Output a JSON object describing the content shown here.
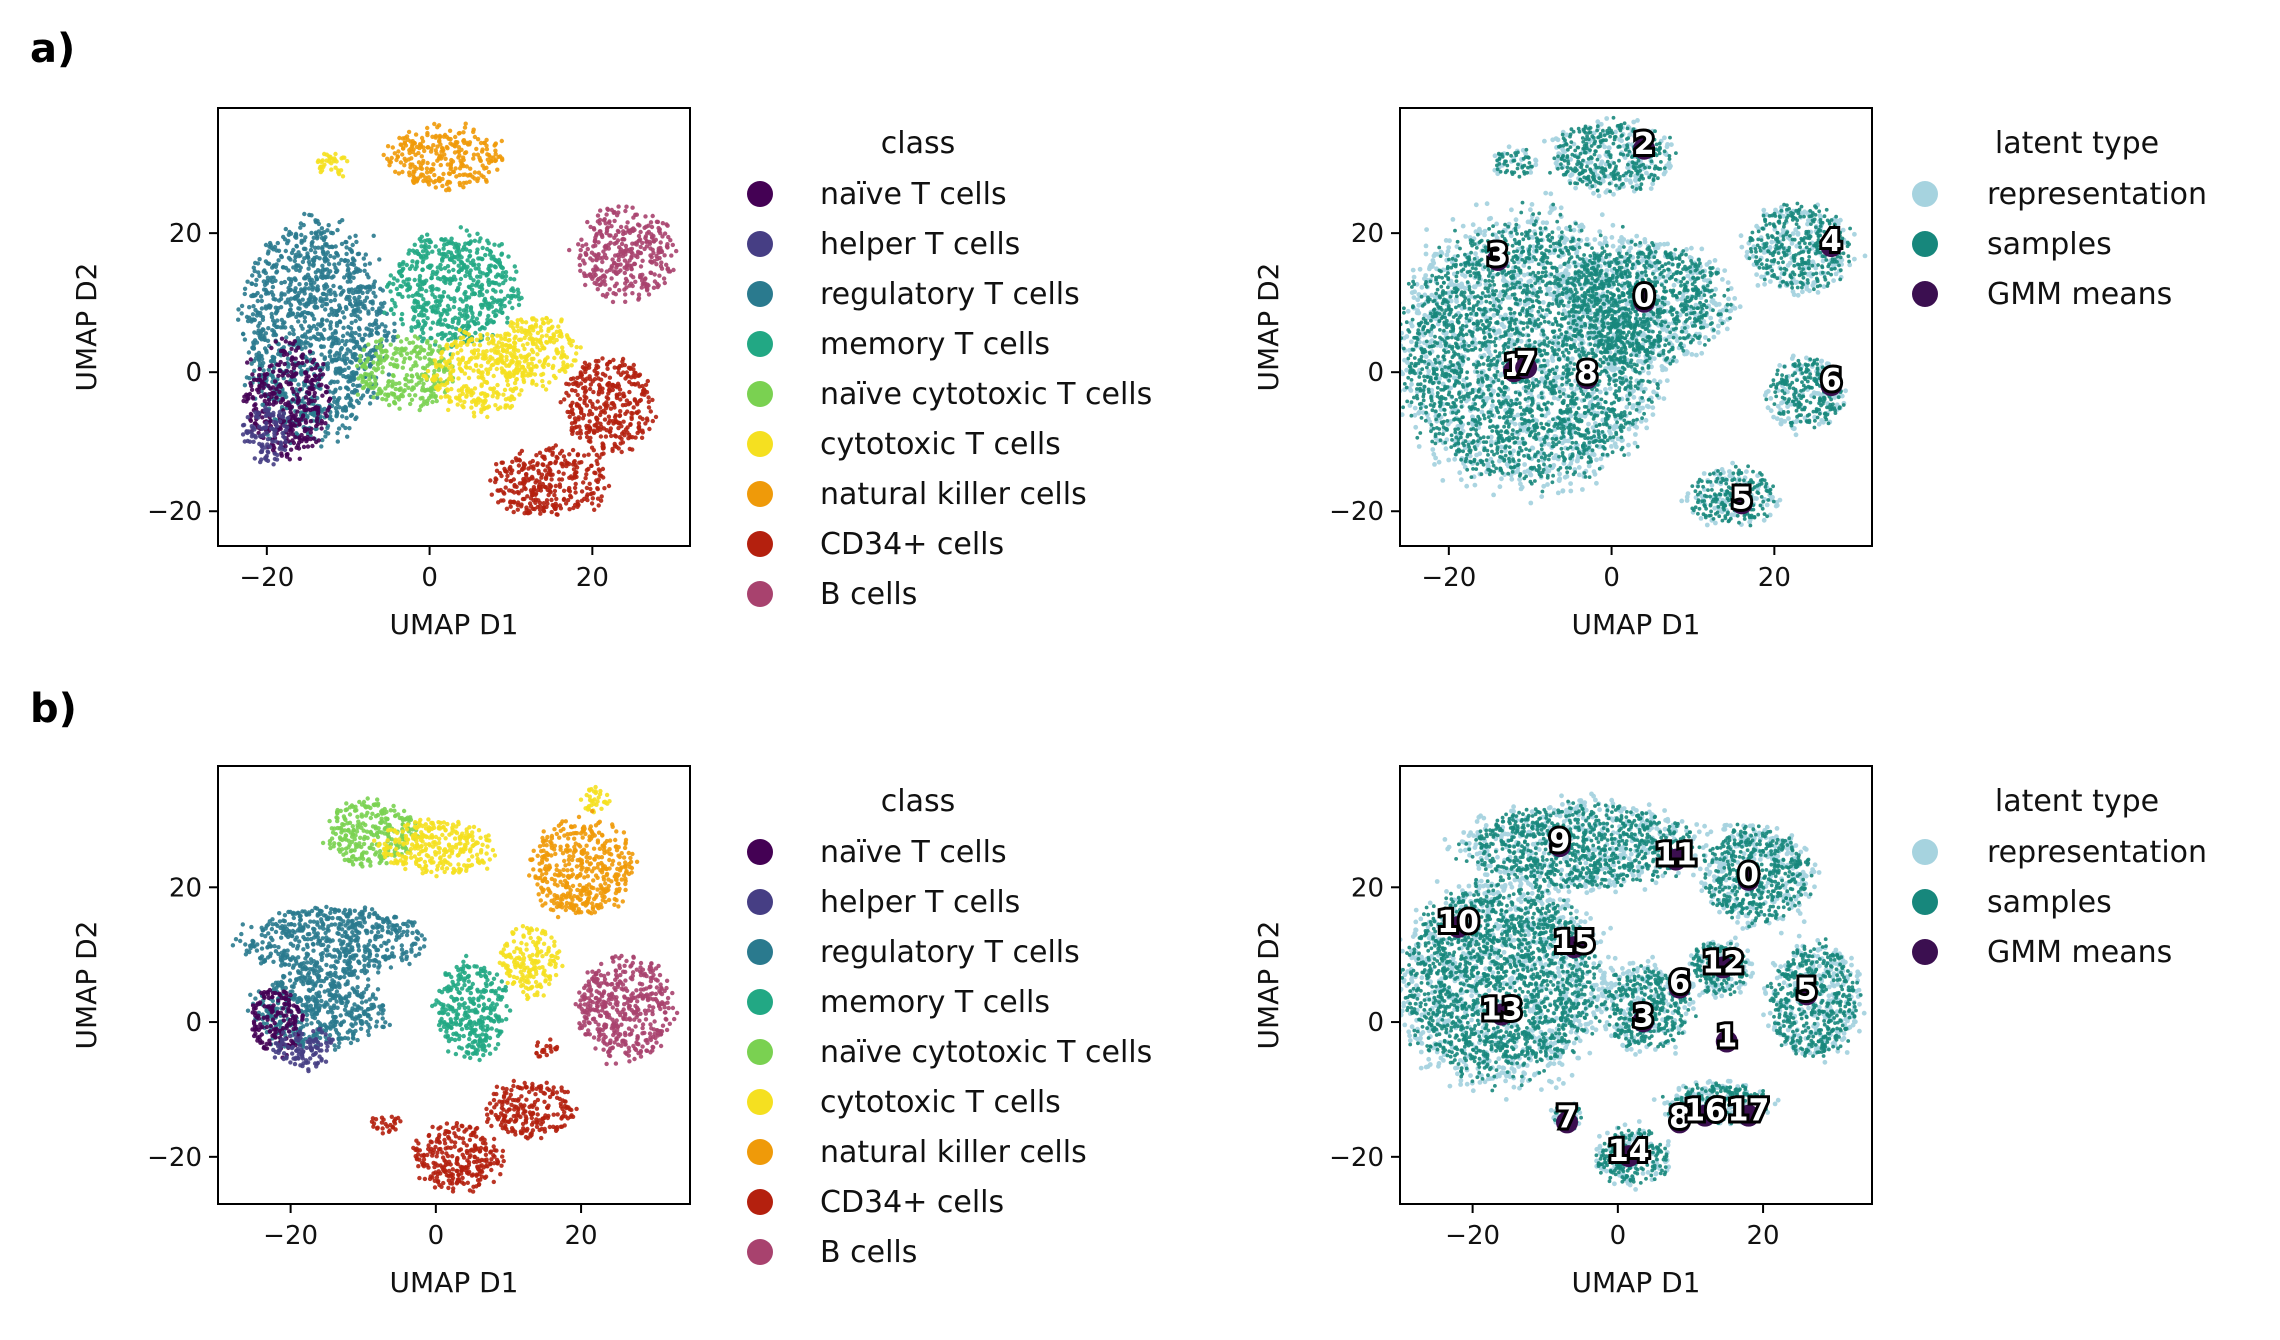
{
  "panels": [
    {
      "label": "a)"
    },
    {
      "label": "b)"
    }
  ],
  "colors": {
    "representation": "#a6d3df",
    "samples": "#17877c",
    "gmm_means": "#3b0f50"
  },
  "chart_data": [
    {
      "id": "a-class",
      "type": "scatter",
      "xlabel": "UMAP D1",
      "ylabel": "UMAP D2",
      "xlim": [
        -26,
        32
      ],
      "ylim": [
        -25,
        38
      ],
      "xticks": [
        -20,
        0,
        20
      ],
      "yticks": [
        -20,
        0,
        20
      ],
      "legend": {
        "title": "class",
        "placement": "right",
        "items": [
          {
            "name": "naïve T cells",
            "color": "#440154"
          },
          {
            "name": "helper T cells",
            "color": "#463e84"
          },
          {
            "name": "regulatory T cells",
            "color": "#2a7a8e"
          },
          {
            "name": "memory T cells",
            "color": "#22a884"
          },
          {
            "name": "naïve cytotoxic T cells",
            "color": "#7ad151"
          },
          {
            "name": "cytotoxic T cells",
            "color": "#f5e020"
          },
          {
            "name": "natural killer cells",
            "color": "#ef9a09"
          },
          {
            "name": "CD34+ cells",
            "color": "#b4200e"
          },
          {
            "name": "B cells",
            "color": "#a8426e"
          }
        ]
      },
      "clusters": [
        {
          "class": "regulatory T cells",
          "cx": -14,
          "cy": 6,
          "rx": 9,
          "ry": 15
        },
        {
          "class": "naïve T cells",
          "cx": -17.5,
          "cy": -4,
          "rx": 5,
          "ry": 8
        },
        {
          "class": "helper T cells",
          "cx": -20,
          "cy": -9,
          "rx": 3,
          "ry": 4
        },
        {
          "class": "memory T cells",
          "cx": 3,
          "cy": 12,
          "rx": 8,
          "ry": 8
        },
        {
          "class": "naïve cytotoxic T cells",
          "cx": -3,
          "cy": 0,
          "rx": 6,
          "ry": 5
        },
        {
          "class": "cytotoxic T cells",
          "cx": 6,
          "cy": 0,
          "rx": 6,
          "ry": 6
        },
        {
          "class": "cytotoxic T cells",
          "cx": 13,
          "cy": 3,
          "rx": 5,
          "ry": 5
        },
        {
          "class": "cytotoxic T cells",
          "cx": -12,
          "cy": 30,
          "rx": 2,
          "ry": 2
        },
        {
          "class": "natural killer cells",
          "cx": 2,
          "cy": 31,
          "rx": 7,
          "ry": 4.5
        },
        {
          "class": "B cells",
          "cx": 24,
          "cy": 17,
          "rx": 6,
          "ry": 6.5
        },
        {
          "class": "CD34+ cells",
          "cx": 22,
          "cy": -5,
          "rx": 5.5,
          "ry": 7
        },
        {
          "class": "CD34+ cells",
          "cx": 15,
          "cy": -16,
          "rx": 7,
          "ry": 5
        }
      ]
    },
    {
      "id": "a-latent",
      "type": "scatter",
      "xlabel": "UMAP D1",
      "ylabel": "UMAP D2",
      "xlim": [
        -26,
        32
      ],
      "ylim": [
        -25,
        38
      ],
      "xticks": [
        -20,
        0,
        20
      ],
      "yticks": [
        -20,
        0,
        20
      ],
      "legend": {
        "title": "latent type",
        "placement": "right",
        "items": [
          {
            "name": "representation",
            "color": "#a6d3df"
          },
          {
            "name": "samples",
            "color": "#17877c"
          },
          {
            "name": "GMM means",
            "color": "#3b0f50"
          }
        ]
      },
      "regions": [
        {
          "cx": -10,
          "cy": 3,
          "rx": 15,
          "ry": 18
        },
        {
          "cx": 4,
          "cy": 10,
          "rx": 10,
          "ry": 8
        },
        {
          "cx": 0,
          "cy": 31,
          "rx": 7,
          "ry": 5
        },
        {
          "cx": -12,
          "cy": 30,
          "rx": 2.5,
          "ry": 2
        },
        {
          "cx": 23,
          "cy": 18,
          "rx": 6,
          "ry": 6
        },
        {
          "cx": 24,
          "cy": -3,
          "rx": 4.5,
          "ry": 5
        },
        {
          "cx": 15,
          "cy": -18,
          "rx": 5,
          "ry": 4
        }
      ],
      "gmm_means": [
        {
          "label": "2",
          "x": 4,
          "y": 33
        },
        {
          "label": "3",
          "x": -14,
          "y": 17
        },
        {
          "label": "4",
          "x": 27,
          "y": 19
        },
        {
          "label": "0",
          "x": 4,
          "y": 11
        },
        {
          "label": "1",
          "x": -12,
          "y": 1
        },
        {
          "label": "7",
          "x": -10.5,
          "y": 1.5
        },
        {
          "label": "8",
          "x": -3,
          "y": 0
        },
        {
          "label": "6",
          "x": 27,
          "y": -1
        },
        {
          "label": "5",
          "x": 16,
          "y": -18
        }
      ]
    },
    {
      "id": "b-class",
      "type": "scatter",
      "xlabel": "UMAP D1",
      "ylabel": "UMAP D2",
      "xlim": [
        -30,
        35
      ],
      "ylim": [
        -27,
        38
      ],
      "xticks": [
        -20,
        0,
        20
      ],
      "yticks": [
        -20,
        0,
        20
      ],
      "legend": {
        "title": "class",
        "placement": "right",
        "items": [
          {
            "name": "naïve T cells",
            "color": "#440154"
          },
          {
            "name": "helper T cells",
            "color": "#463e84"
          },
          {
            "name": "regulatory T cells",
            "color": "#2a7a8e"
          },
          {
            "name": "memory T cells",
            "color": "#22a884"
          },
          {
            "name": "naïve cytotoxic T cells",
            "color": "#7ad151"
          },
          {
            "name": "cytotoxic T cells",
            "color": "#f5e020"
          },
          {
            "name": "natural killer cells",
            "color": "#ef9a09"
          },
          {
            "name": "CD34+ cells",
            "color": "#b4200e"
          },
          {
            "name": "B cells",
            "color": "#a8426e"
          }
        ]
      },
      "clusters": [
        {
          "class": "regulatory T cells",
          "cx": -14,
          "cy": 12,
          "rx": 12,
          "ry": 5
        },
        {
          "class": "regulatory T cells",
          "cx": -16,
          "cy": 2,
          "rx": 9,
          "ry": 6
        },
        {
          "class": "naïve T cells",
          "cx": -22,
          "cy": 0,
          "rx": 3.5,
          "ry": 5
        },
        {
          "class": "helper T cells",
          "cx": -18,
          "cy": -4,
          "rx": 4,
          "ry": 3
        },
        {
          "class": "naïve cytotoxic T cells",
          "cx": -9,
          "cy": 28,
          "rx": 6,
          "ry": 5
        },
        {
          "class": "cytotoxic T cells",
          "cx": 0,
          "cy": 26,
          "rx": 8,
          "ry": 4
        },
        {
          "class": "memory T cells",
          "cx": 5,
          "cy": 2,
          "rx": 5,
          "ry": 7
        },
        {
          "class": "cytotoxic T cells",
          "cx": 13,
          "cy": 9,
          "rx": 4,
          "ry": 5
        },
        {
          "class": "cytotoxic T cells",
          "cx": 22,
          "cy": 33,
          "rx": 2,
          "ry": 2
        },
        {
          "class": "natural killer cells",
          "cx": 20,
          "cy": 23,
          "rx": 7,
          "ry": 7
        },
        {
          "class": "B cells",
          "cx": 26,
          "cy": 2,
          "rx": 6.5,
          "ry": 7.5
        },
        {
          "class": "CD34+ cells",
          "cx": 3,
          "cy": -20,
          "rx": 6,
          "ry": 5
        },
        {
          "class": "CD34+ cells",
          "cx": 13,
          "cy": -13,
          "rx": 6,
          "ry": 4
        },
        {
          "class": "CD34+ cells",
          "cx": -7,
          "cy": -15,
          "rx": 2,
          "ry": 1.5
        },
        {
          "class": "CD34+ cells",
          "cx": 15,
          "cy": -4,
          "rx": 1.5,
          "ry": 1.5
        }
      ]
    },
    {
      "id": "b-latent",
      "type": "scatter",
      "xlabel": "UMAP D1",
      "ylabel": "UMAP D2",
      "xlim": [
        -30,
        35
      ],
      "ylim": [
        -27,
        38
      ],
      "xticks": [
        -20,
        0,
        20
      ],
      "yticks": [
        -20,
        0,
        20
      ],
      "legend": {
        "title": "latent type",
        "placement": "right",
        "items": [
          {
            "name": "representation",
            "color": "#a6d3df"
          },
          {
            "name": "samples",
            "color": "#17877c"
          },
          {
            "name": "GMM means",
            "color": "#3b0f50"
          }
        ]
      },
      "regions": [
        {
          "cx": -5,
          "cy": 26,
          "rx": 15,
          "ry": 6
        },
        {
          "cx": -16,
          "cy": 6,
          "rx": 13,
          "ry": 14
        },
        {
          "cx": 4,
          "cy": 2,
          "rx": 6,
          "ry": 6
        },
        {
          "cx": 14,
          "cy": 8,
          "rx": 4,
          "ry": 4
        },
        {
          "cx": 19,
          "cy": 22,
          "rx": 7,
          "ry": 7
        },
        {
          "cx": 27,
          "cy": 3,
          "rx": 6,
          "ry": 8
        },
        {
          "cx": 2,
          "cy": -20,
          "rx": 5,
          "ry": 4
        },
        {
          "cx": 14,
          "cy": -12,
          "rx": 7,
          "ry": 3
        },
        {
          "cx": -7,
          "cy": -14,
          "rx": 2,
          "ry": 2
        }
      ],
      "gmm_means": [
        {
          "label": "9",
          "x": -8,
          "y": 27
        },
        {
          "label": "11",
          "x": 8,
          "y": 25
        },
        {
          "label": "0",
          "x": 18,
          "y": 22
        },
        {
          "label": "10",
          "x": -22,
          "y": 15
        },
        {
          "label": "15",
          "x": -6,
          "y": 12
        },
        {
          "label": "6",
          "x": 8.5,
          "y": 6
        },
        {
          "label": "12",
          "x": 14.5,
          "y": 9
        },
        {
          "label": "5",
          "x": 26,
          "y": 5
        },
        {
          "label": "13",
          "x": -16,
          "y": 2
        },
        {
          "label": "3",
          "x": 3.5,
          "y": 1
        },
        {
          "label": "1",
          "x": 15,
          "y": -2
        },
        {
          "label": "7",
          "x": -7,
          "y": -14
        },
        {
          "label": "8",
          "x": 8.5,
          "y": -14
        },
        {
          "label": "16",
          "x": 12,
          "y": -13
        },
        {
          "label": "17",
          "x": 18,
          "y": -13
        },
        {
          "label": "14",
          "x": 1.5,
          "y": -19
        }
      ]
    }
  ]
}
